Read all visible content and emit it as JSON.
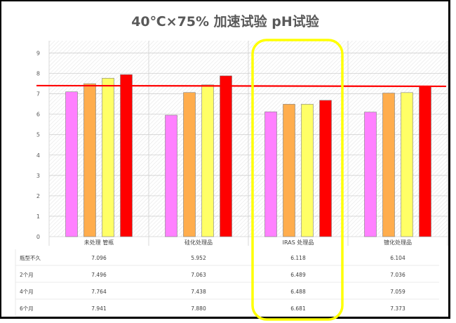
{
  "chart_data": {
    "type": "bar",
    "title": "40℃×75% 加速试验 pH试验",
    "categories": [
      "未处理 管瓶",
      "硅化处理品",
      "IRAS 处理品",
      "镀化处理品"
    ],
    "series": [
      {
        "name": "瓶型不久",
        "values": [
          7.096,
          5.952,
          6.118,
          6.104
        ],
        "color": "#ff80ff"
      },
      {
        "name": "2个月",
        "values": [
          7.496,
          7.063,
          6.489,
          7.036
        ],
        "color": "#ffad4d"
      },
      {
        "name": "4个月",
        "values": [
          7.764,
          7.438,
          6.488,
          7.059
        ],
        "color": "#ffff66"
      },
      {
        "name": "6个月",
        "values": [
          7.941,
          7.88,
          6.681,
          7.373
        ],
        "color": "#ff0000"
      }
    ],
    "table_values": [
      [
        "7.096",
        "5.952",
        "6.118",
        "6.104"
      ],
      [
        "7.496",
        "7.063",
        "6.489",
        "7.036"
      ],
      [
        "7.764",
        "7.438",
        "6.488",
        "7.059"
      ],
      [
        "7.941",
        "7.880",
        "6.681",
        "7.373"
      ]
    ],
    "y_ticks": [
      "0",
      "1",
      "2",
      "3",
      "4",
      "5",
      "6",
      "7",
      "8",
      "9"
    ],
    "ylim": [
      0,
      9.6
    ],
    "reference_line": {
      "value": 7.4,
      "color": "#ff0000"
    },
    "highlight_category_index": 2,
    "highlight_color": "#ffff00",
    "grid": true,
    "legend": "table-below"
  }
}
